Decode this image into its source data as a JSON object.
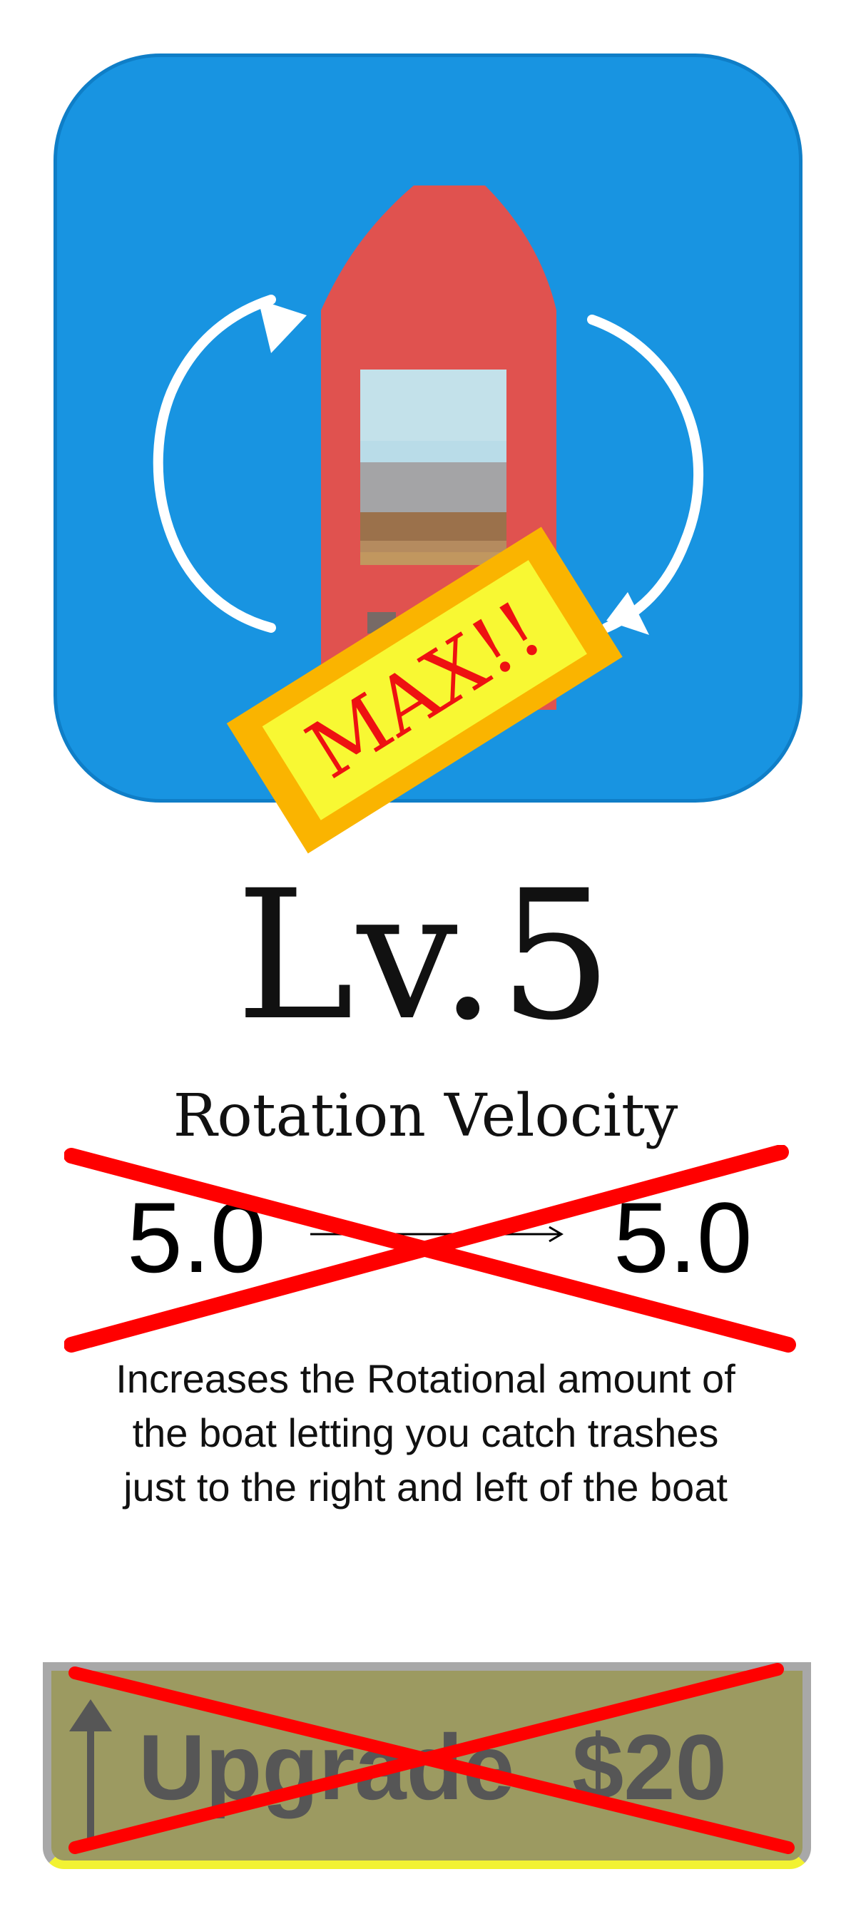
{
  "badge": {
    "text": "MAX!!"
  },
  "level": {
    "text": "Lv.5"
  },
  "stat": {
    "name": "Rotation Velocity",
    "current": "5.0",
    "next": "5.0"
  },
  "description": "Increases the Rotational amount of the boat letting you catch trashes just to the right and left of the boat",
  "upgrade": {
    "label": "Upgrade",
    "price": "$20",
    "disabled": true
  },
  "colors": {
    "icon_background": "#1894e1",
    "boat": "#e0524f",
    "badge_fill": "#f8f833",
    "badge_border": "#fab400",
    "cross": "#ff0000",
    "button": "#9c9a61"
  },
  "icons": {
    "rotation": "rotate-arrows-icon",
    "boat": "boat-icon",
    "upgrade": "up-arrow-icon"
  }
}
